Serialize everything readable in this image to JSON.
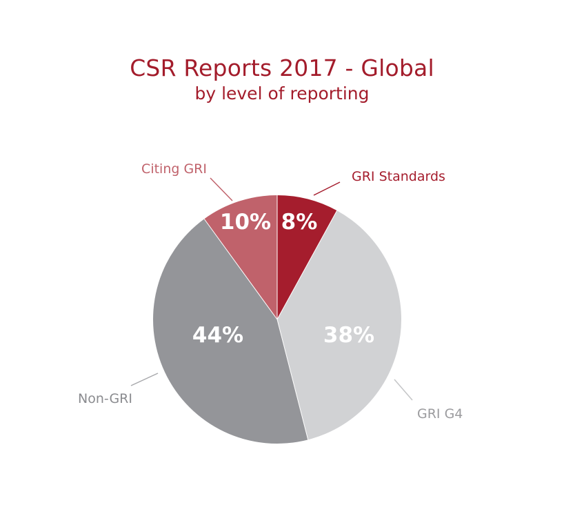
{
  "chart_data": {
    "type": "pie",
    "title": "CSR Reports 2017 - Global",
    "subtitle": "by level of reporting",
    "slices": [
      {
        "label": "GRI Standards",
        "value": 8,
        "value_label": "8%",
        "color": "#a51d2d",
        "label_color": "#a51d2d",
        "line_color": "#a51d2d"
      },
      {
        "label": "GRI G4",
        "value": 38,
        "value_label": "38%",
        "color": "#d1d2d4",
        "label_color": "#9b9b9e",
        "line_color": "#c4c5c7"
      },
      {
        "label": "Non-GRI",
        "value": 44,
        "value_label": "44%",
        "color": "#949599",
        "label_color": "#8a8b8f",
        "line_color": "#a7a8ab"
      },
      {
        "label": "Citing GRI",
        "value": 10,
        "value_label": "10%",
        "color": "#c0626b",
        "label_color": "#c0626b",
        "line_color": "#c0626b"
      }
    ]
  }
}
